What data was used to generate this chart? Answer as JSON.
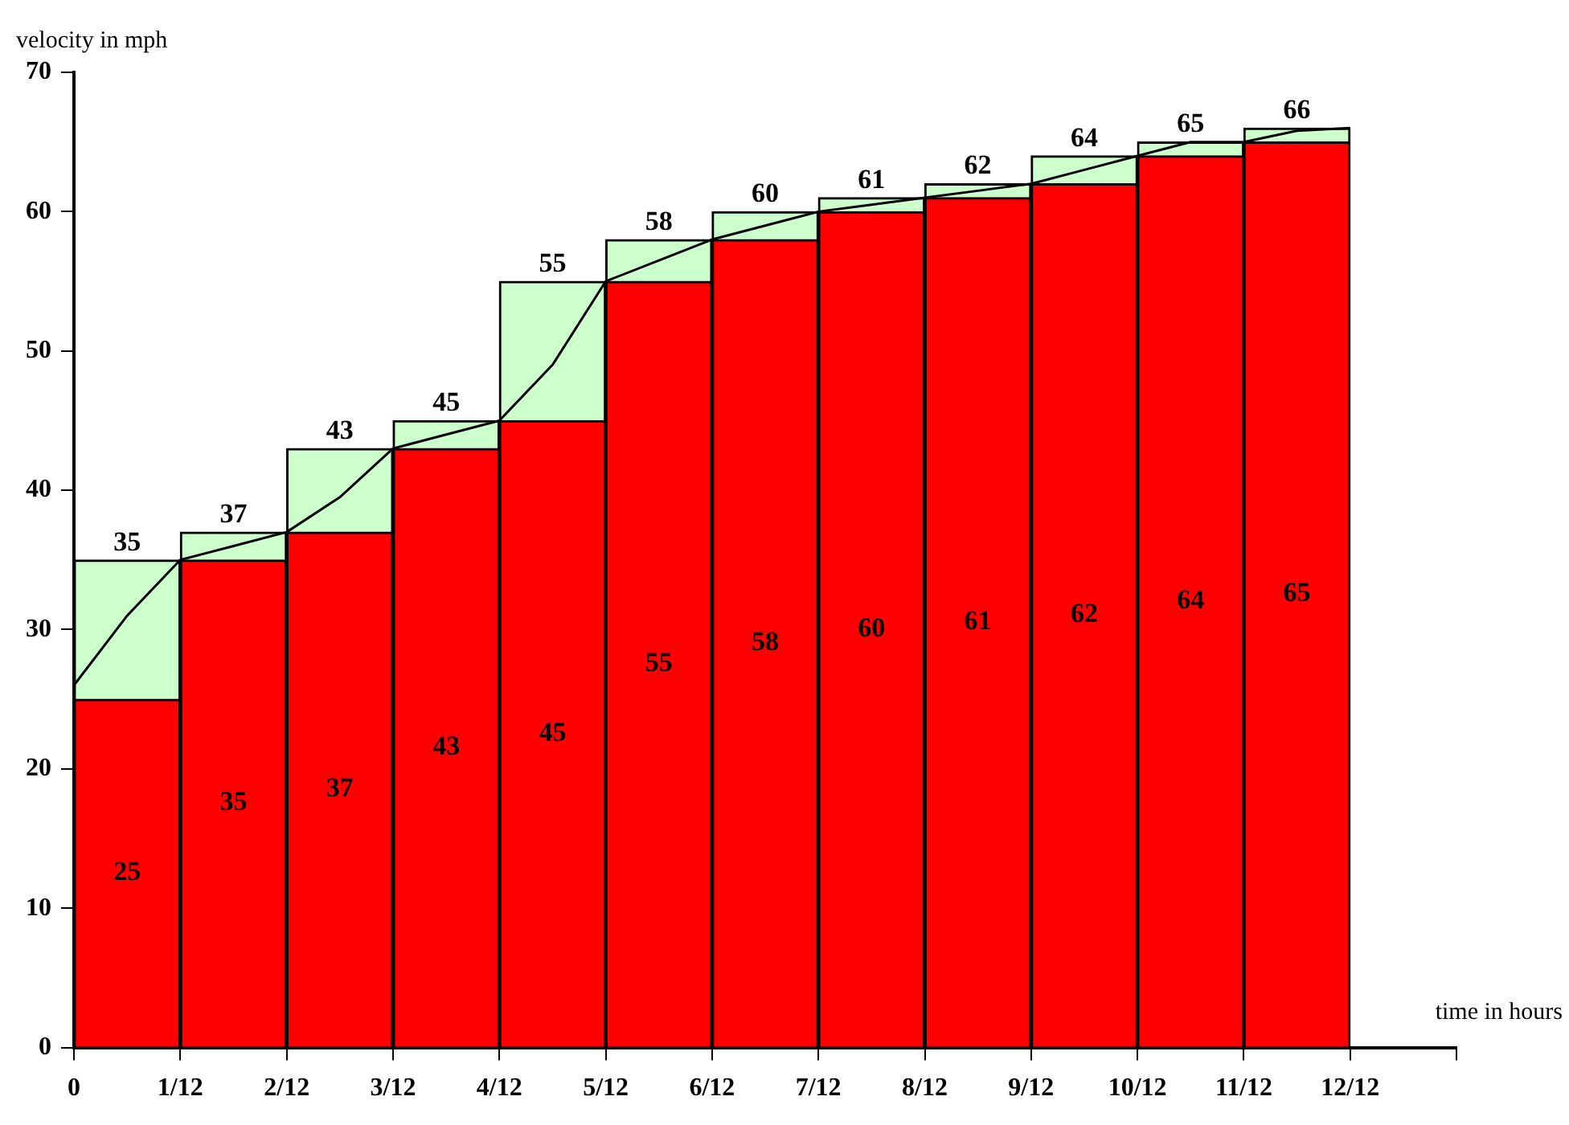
{
  "chart_data": {
    "type": "bar",
    "stacked": true,
    "xlabel": "time in hours",
    "ylabel": "velocity in mph",
    "x": [
      0.0417,
      0.125,
      0.2083,
      0.2917,
      0.375,
      0.4583,
      0.5417,
      0.625,
      0.7083,
      0.7917,
      0.875,
      0.9583
    ],
    "series": [
      {
        "color": "#ff0000",
        "values": [
          25,
          35,
          37,
          43,
          45,
          55,
          58,
          60,
          61,
          62,
          64,
          65
        ],
        "value_labels": [
          "25",
          "35",
          "37",
          "43",
          "45",
          "55",
          "58",
          "60",
          "61",
          "62",
          "64",
          "65"
        ]
      },
      {
        "color": "#ccffcc",
        "values": [
          10,
          2,
          6,
          2,
          10,
          3,
          2,
          1,
          1,
          2,
          1,
          1
        ]
      },
      {
        "type": "line",
        "color": "#000000",
        "x": [
          0,
          0.0417,
          0.0833,
          0.125,
          0.1667,
          0.2083,
          0.25,
          0.2917,
          0.3333,
          0.375,
          0.4167,
          0.4583,
          0.5,
          0.5417,
          0.5833,
          0.625,
          0.6667,
          0.7083,
          0.75,
          0.7917,
          0.8333,
          0.875,
          0.9167,
          0.9583,
          1
        ],
        "values": [
          26,
          31,
          35,
          36,
          37,
          39.5,
          43,
          44,
          45,
          49,
          55,
          56.5,
          58,
          59,
          60,
          60.5,
          61,
          61.5,
          62,
          63,
          64,
          65,
          65,
          65.8,
          66
        ]
      }
    ],
    "totals": [
      "35",
      "37",
      "43",
      "45",
      "55",
      "58",
      "60",
      "61",
      "62",
      "64",
      "65",
      "66"
    ],
    "xlim": [
      0,
      1.0833
    ],
    "xticks": [
      0,
      {
        "value": 0.0833,
        "label": "1/12"
      },
      {
        "value": 0.1667,
        "label": "2/12"
      },
      {
        "value": 0.25,
        "label": "3/12"
      },
      {
        "value": 0.3333,
        "label": "4/12"
      },
      {
        "value": 0.4167,
        "label": "5/12"
      },
      {
        "value": 0.5,
        "label": "6/12"
      },
      {
        "value": 0.5833,
        "label": "7/12"
      },
      {
        "value": 0.6667,
        "label": "8/12"
      },
      {
        "value": 0.75,
        "label": "9/12"
      },
      {
        "value": 0.8333,
        "label": "10/12"
      },
      {
        "value": 0.9167,
        "label": "11/12"
      },
      {
        "value": 1,
        "label": "12/12"
      },
      {
        "value": 1.0833,
        "label": null
      }
    ],
    "ylim": [
      0,
      70
    ],
    "yticks": [
      0,
      10,
      20,
      30,
      40,
      50,
      60,
      70
    ],
    "grid": false,
    "legend": false
  }
}
